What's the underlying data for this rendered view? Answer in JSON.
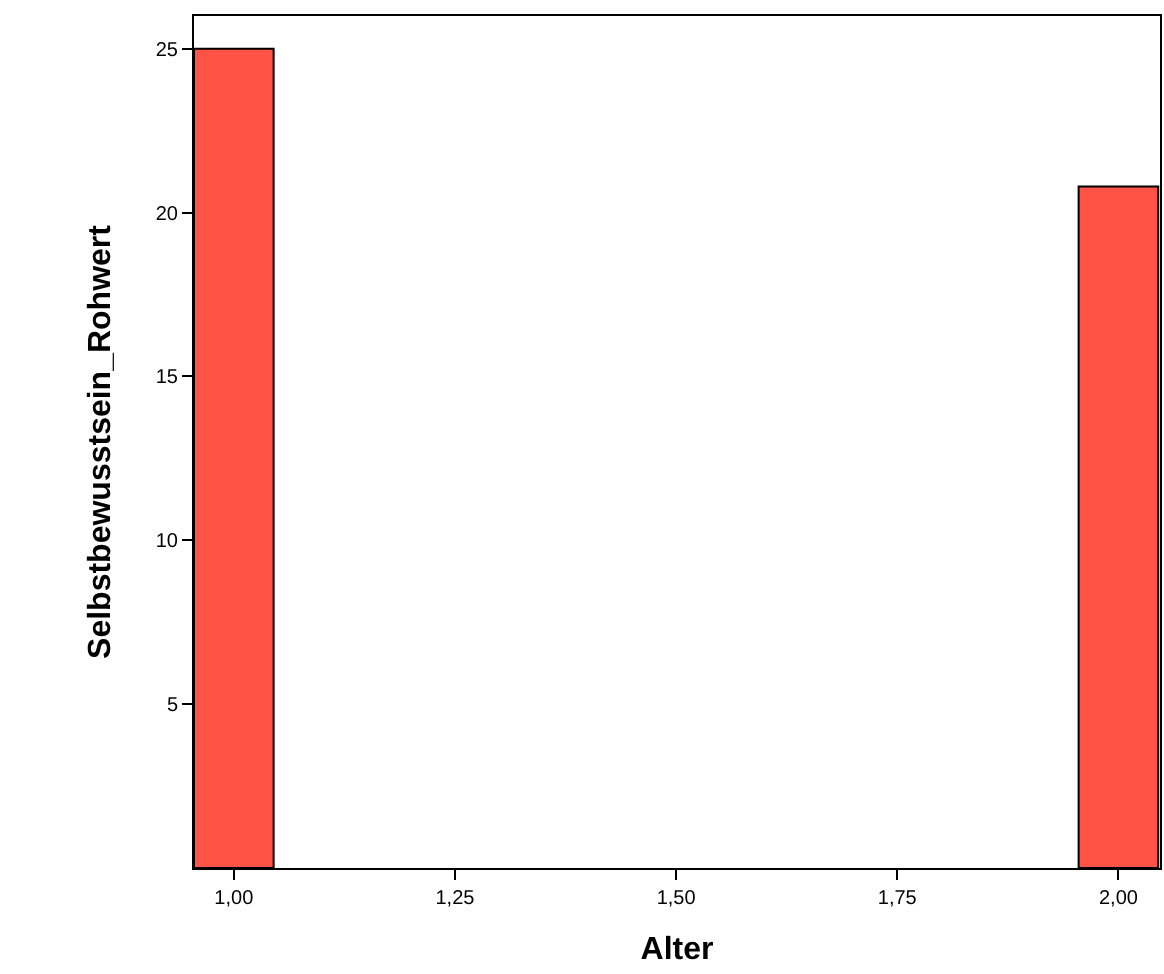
{
  "chart_data": {
    "type": "bar",
    "xlabel": "Alter",
    "ylabel": "Selbstbewusstsein_Rohwert",
    "x": [
      1,
      2
    ],
    "values": [
      25,
      20.8
    ],
    "color": "#ff5347",
    "xlim": [
      0.955,
      2.047
    ],
    "xticks": [
      {
        "value": 1,
        "label": "1,00"
      },
      {
        "value": 1.25,
        "label": "1,25"
      },
      {
        "value": 1.5,
        "label": "1,50"
      },
      {
        "value": 1.75,
        "label": "1,75"
      },
      {
        "value": 2,
        "label": "2,00"
      }
    ],
    "ylim": [
      0,
      26
    ],
    "yticks": [
      5,
      10,
      15,
      20,
      25
    ],
    "grid": false
  }
}
